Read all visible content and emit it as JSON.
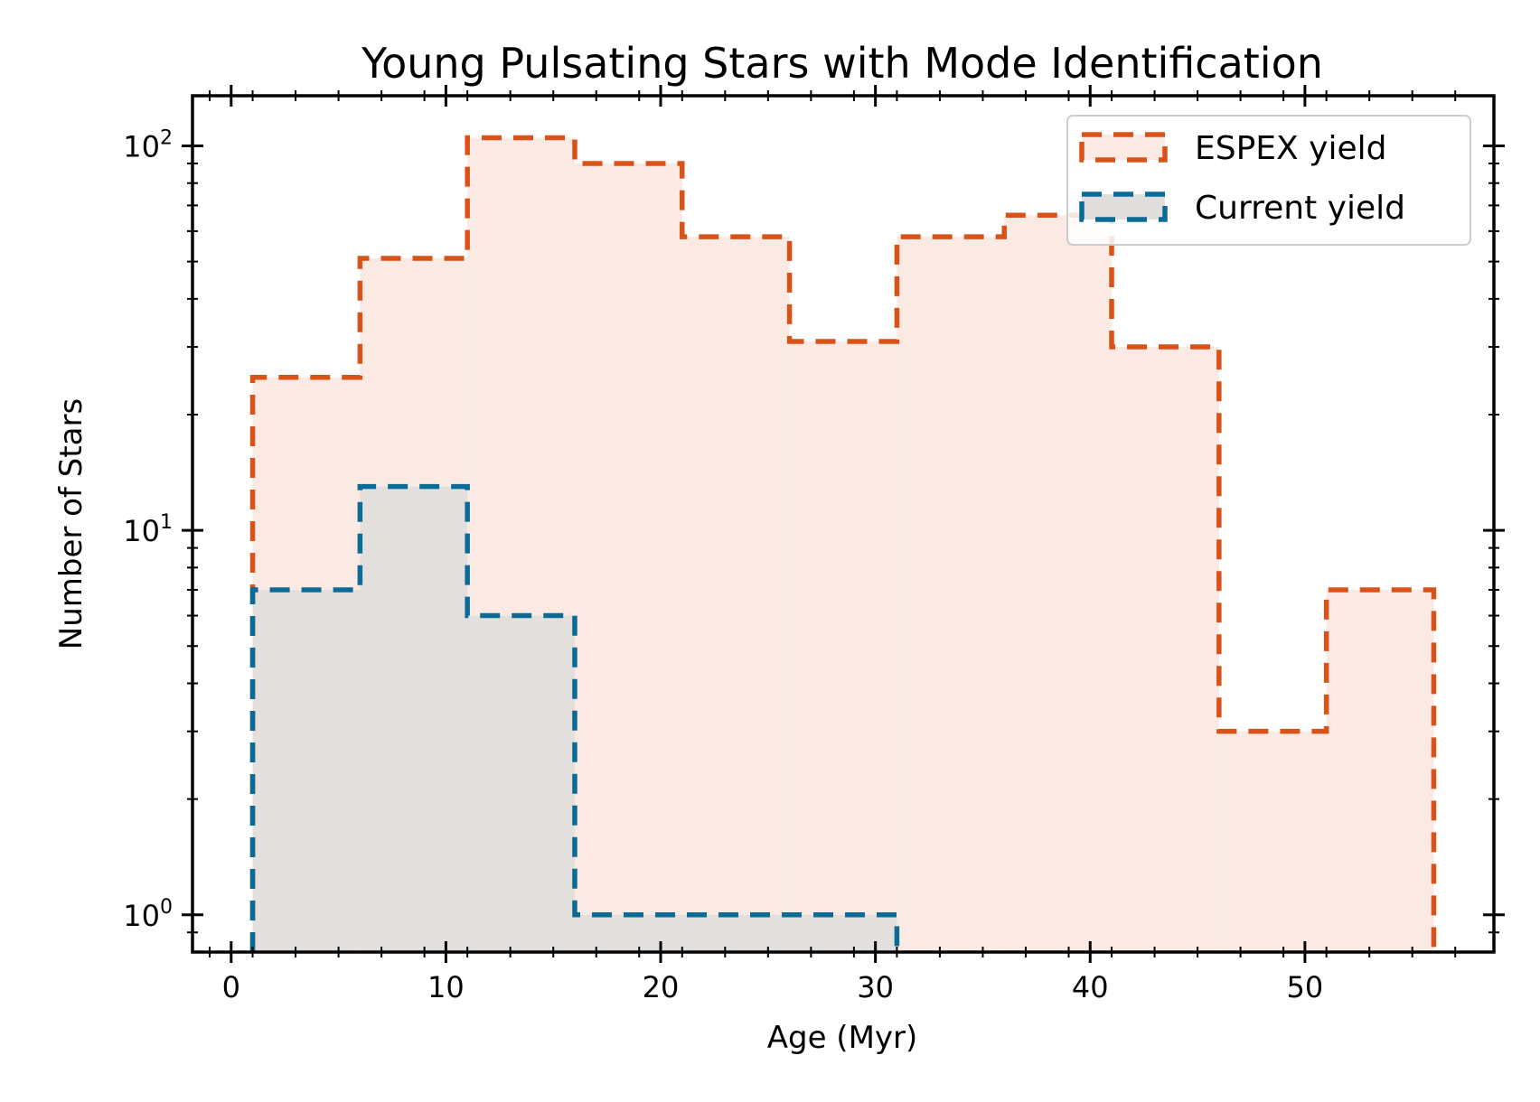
{
  "chart_data": {
    "type": "histogram",
    "title": "Young Pulsating Stars with Mode Identification",
    "xlabel": "Age (Myr)",
    "ylabel": "Number of Stars",
    "xlim": [
      -1.8,
      58.8
    ],
    "ylim": [
      0.8,
      135
    ],
    "yscale": "log",
    "x_ticks": [
      0,
      10,
      20,
      30,
      40,
      50
    ],
    "y_ticks": [
      {
        "value": 1,
        "base": "10",
        "exp": "0"
      },
      {
        "value": 10,
        "base": "10",
        "exp": "1"
      },
      {
        "value": 100,
        "base": "10",
        "exp": "2"
      }
    ],
    "bin_edges": [
      1,
      6,
      11,
      16,
      21,
      26,
      31,
      36,
      41,
      46,
      51,
      56
    ],
    "series": [
      {
        "name": "ESPEX yield",
        "color": "#D95319",
        "fill": "#FBEAE3",
        "values": [
          25,
          51,
          105,
          90,
          58,
          31,
          58,
          66,
          30,
          3,
          7
        ]
      },
      {
        "name": "Current yield",
        "color": "#0C6B96",
        "fill": "#E0DEDC",
        "values": [
          7,
          13,
          6,
          1,
          1,
          1,
          0,
          0,
          0,
          0,
          0
        ]
      }
    ],
    "grid": false,
    "legend": "top-right"
  }
}
